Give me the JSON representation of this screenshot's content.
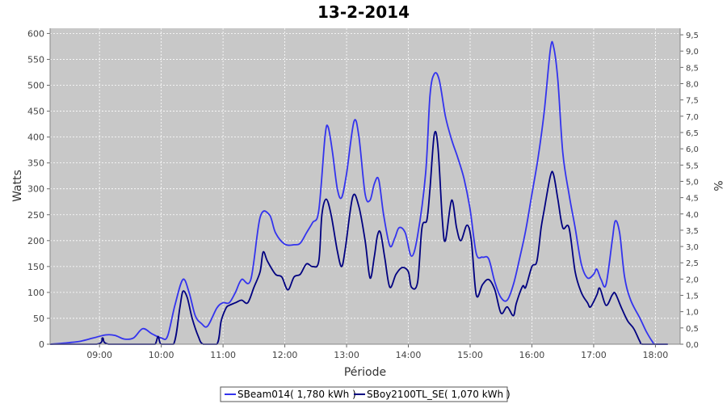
{
  "chart_data": {
    "type": "line",
    "title": "13-2-2014",
    "xlabel": "Période",
    "ylabel": "Watts",
    "ylabel_right": "%",
    "xlim": [
      8.2,
      18.4
    ],
    "ylim": [
      0,
      610
    ],
    "ylim_right": [
      0,
      9.7
    ],
    "x_ticks": [
      {
        "value": 9,
        "label": "09:00"
      },
      {
        "value": 10,
        "label": "10:00"
      },
      {
        "value": 11,
        "label": "11:00"
      },
      {
        "value": 12,
        "label": "12:00"
      },
      {
        "value": 13,
        "label": "13:00"
      },
      {
        "value": 14,
        "label": "14:00"
      },
      {
        "value": 15,
        "label": "15:00"
      },
      {
        "value": 16,
        "label": "16:00"
      },
      {
        "value": 17,
        "label": "17:00"
      },
      {
        "value": 18,
        "label": "18:00"
      }
    ],
    "y_ticks": [
      0,
      50,
      100,
      150,
      200,
      250,
      300,
      350,
      400,
      450,
      500,
      550,
      600
    ],
    "y_right_ticks": [
      "0,0",
      "0,5",
      "1,0",
      "1,5",
      "2,0",
      "2,5",
      "3,0",
      "3,5",
      "4,0",
      "4,5",
      "5,0",
      "5,5",
      "6,0",
      "6,5",
      "7,0",
      "7,5",
      "8,0",
      "8,5",
      "9,0",
      "9,5"
    ],
    "grid": true,
    "legend_position": "bottom",
    "background": "#c8c8c8",
    "series": [
      {
        "name": "SBeam014( 1,780 kWh )",
        "color": "#3333ee",
        "points": [
          [
            8.2,
            0
          ],
          [
            8.5,
            3
          ],
          [
            8.7,
            6
          ],
          [
            8.9,
            12
          ],
          [
            9.1,
            18
          ],
          [
            9.25,
            17
          ],
          [
            9.4,
            10
          ],
          [
            9.55,
            12
          ],
          [
            9.7,
            30
          ],
          [
            9.85,
            20
          ],
          [
            10.0,
            12
          ],
          [
            10.1,
            15
          ],
          [
            10.22,
            75
          ],
          [
            10.35,
            125
          ],
          [
            10.45,
            100
          ],
          [
            10.55,
            55
          ],
          [
            10.65,
            40
          ],
          [
            10.75,
            35
          ],
          [
            10.9,
            70
          ],
          [
            11.0,
            80
          ],
          [
            11.1,
            80
          ],
          [
            11.2,
            100
          ],
          [
            11.3,
            125
          ],
          [
            11.45,
            125
          ],
          [
            11.6,
            245
          ],
          [
            11.75,
            250
          ],
          [
            11.85,
            215
          ],
          [
            12.0,
            193
          ],
          [
            12.15,
            192
          ],
          [
            12.25,
            195
          ],
          [
            12.35,
            215
          ],
          [
            12.45,
            235
          ],
          [
            12.55,
            258
          ],
          [
            12.65,
            400
          ],
          [
            12.7,
            420
          ],
          [
            12.77,
            372
          ],
          [
            12.85,
            300
          ],
          [
            12.92,
            283
          ],
          [
            13.0,
            330
          ],
          [
            13.12,
            430
          ],
          [
            13.2,
            400
          ],
          [
            13.3,
            290
          ],
          [
            13.38,
            278
          ],
          [
            13.45,
            310
          ],
          [
            13.52,
            318
          ],
          [
            13.6,
            250
          ],
          [
            13.7,
            190
          ],
          [
            13.78,
            205
          ],
          [
            13.85,
            225
          ],
          [
            13.95,
            215
          ],
          [
            14.05,
            170
          ],
          [
            14.15,
            210
          ],
          [
            14.28,
            330
          ],
          [
            14.35,
            480
          ],
          [
            14.42,
            522
          ],
          [
            14.5,
            510
          ],
          [
            14.6,
            440
          ],
          [
            14.7,
            395
          ],
          [
            14.8,
            360
          ],
          [
            14.9,
            320
          ],
          [
            15.0,
            260
          ],
          [
            15.1,
            175
          ],
          [
            15.2,
            168
          ],
          [
            15.3,
            165
          ],
          [
            15.4,
            120
          ],
          [
            15.5,
            90
          ],
          [
            15.6,
            85
          ],
          [
            15.7,
            115
          ],
          [
            15.8,
            165
          ],
          [
            15.9,
            220
          ],
          [
            16.0,
            290
          ],
          [
            16.1,
            360
          ],
          [
            16.2,
            450
          ],
          [
            16.3,
            570
          ],
          [
            16.35,
            575
          ],
          [
            16.42,
            510
          ],
          [
            16.5,
            370
          ],
          [
            16.6,
            290
          ],
          [
            16.7,
            225
          ],
          [
            16.8,
            155
          ],
          [
            16.9,
            128
          ],
          [
            17.0,
            135
          ],
          [
            17.05,
            145
          ],
          [
            17.12,
            125
          ],
          [
            17.2,
            115
          ],
          [
            17.3,
            200
          ],
          [
            17.35,
            238
          ],
          [
            17.42,
            215
          ],
          [
            17.5,
            130
          ],
          [
            17.6,
            85
          ],
          [
            17.75,
            50
          ],
          [
            17.85,
            25
          ],
          [
            17.95,
            5
          ],
          [
            18.0,
            0
          ],
          [
            18.2,
            0
          ]
        ]
      },
      {
        "name": "SBoy2100TL_SE( 1,070 kWh )",
        "color": "#000080",
        "points": [
          [
            8.2,
            0
          ],
          [
            8.95,
            0
          ],
          [
            9.05,
            12
          ],
          [
            9.15,
            0
          ],
          [
            9.8,
            0
          ],
          [
            9.9,
            0
          ],
          [
            9.95,
            15
          ],
          [
            10.0,
            0
          ],
          [
            10.2,
            0
          ],
          [
            10.3,
            70
          ],
          [
            10.35,
            102
          ],
          [
            10.42,
            90
          ],
          [
            10.5,
            50
          ],
          [
            10.6,
            15
          ],
          [
            10.68,
            0
          ],
          [
            10.9,
            0
          ],
          [
            10.97,
            45
          ],
          [
            11.05,
            70
          ],
          [
            11.1,
            75
          ],
          [
            11.2,
            80
          ],
          [
            11.3,
            85
          ],
          [
            11.4,
            80
          ],
          [
            11.5,
            110
          ],
          [
            11.6,
            140
          ],
          [
            11.65,
            178
          ],
          [
            11.72,
            160
          ],
          [
            11.85,
            135
          ],
          [
            11.95,
            130
          ],
          [
            12.05,
            105
          ],
          [
            12.15,
            130
          ],
          [
            12.25,
            135
          ],
          [
            12.35,
            155
          ],
          [
            12.45,
            150
          ],
          [
            12.55,
            160
          ],
          [
            12.6,
            250
          ],
          [
            12.67,
            280
          ],
          [
            12.75,
            250
          ],
          [
            12.85,
            180
          ],
          [
            12.92,
            150
          ],
          [
            12.98,
            185
          ],
          [
            13.1,
            285
          ],
          [
            13.2,
            265
          ],
          [
            13.3,
            200
          ],
          [
            13.38,
            128
          ],
          [
            13.45,
            170
          ],
          [
            13.5,
            210
          ],
          [
            13.55,
            215
          ],
          [
            13.62,
            165
          ],
          [
            13.7,
            110
          ],
          [
            13.8,
            135
          ],
          [
            13.9,
            148
          ],
          [
            14.0,
            140
          ],
          [
            14.05,
            110
          ],
          [
            14.15,
            120
          ],
          [
            14.22,
            225
          ],
          [
            14.3,
            240
          ],
          [
            14.35,
            300
          ],
          [
            14.42,
            405
          ],
          [
            14.48,
            380
          ],
          [
            14.55,
            240
          ],
          [
            14.6,
            200
          ],
          [
            14.7,
            278
          ],
          [
            14.78,
            225
          ],
          [
            14.85,
            200
          ],
          [
            14.95,
            230
          ],
          [
            15.02,
            200
          ],
          [
            15.1,
            95
          ],
          [
            15.2,
            115
          ],
          [
            15.3,
            125
          ],
          [
            15.4,
            105
          ],
          [
            15.5,
            60
          ],
          [
            15.6,
            72
          ],
          [
            15.7,
            55
          ],
          [
            15.75,
            80
          ],
          [
            15.85,
            112
          ],
          [
            15.9,
            110
          ],
          [
            16.0,
            150
          ],
          [
            16.08,
            160
          ],
          [
            16.15,
            225
          ],
          [
            16.2,
            260
          ],
          [
            16.3,
            325
          ],
          [
            16.35,
            328
          ],
          [
            16.42,
            280
          ],
          [
            16.5,
            225
          ],
          [
            16.6,
            225
          ],
          [
            16.7,
            140
          ],
          [
            16.8,
            100
          ],
          [
            16.9,
            80
          ],
          [
            16.95,
            72
          ],
          [
            17.05,
            95
          ],
          [
            17.1,
            108
          ],
          [
            17.2,
            75
          ],
          [
            17.3,
            95
          ],
          [
            17.35,
            98
          ],
          [
            17.45,
            70
          ],
          [
            17.55,
            45
          ],
          [
            17.65,
            30
          ],
          [
            17.75,
            5
          ],
          [
            17.8,
            0
          ],
          [
            18.2,
            0
          ]
        ]
      }
    ]
  }
}
